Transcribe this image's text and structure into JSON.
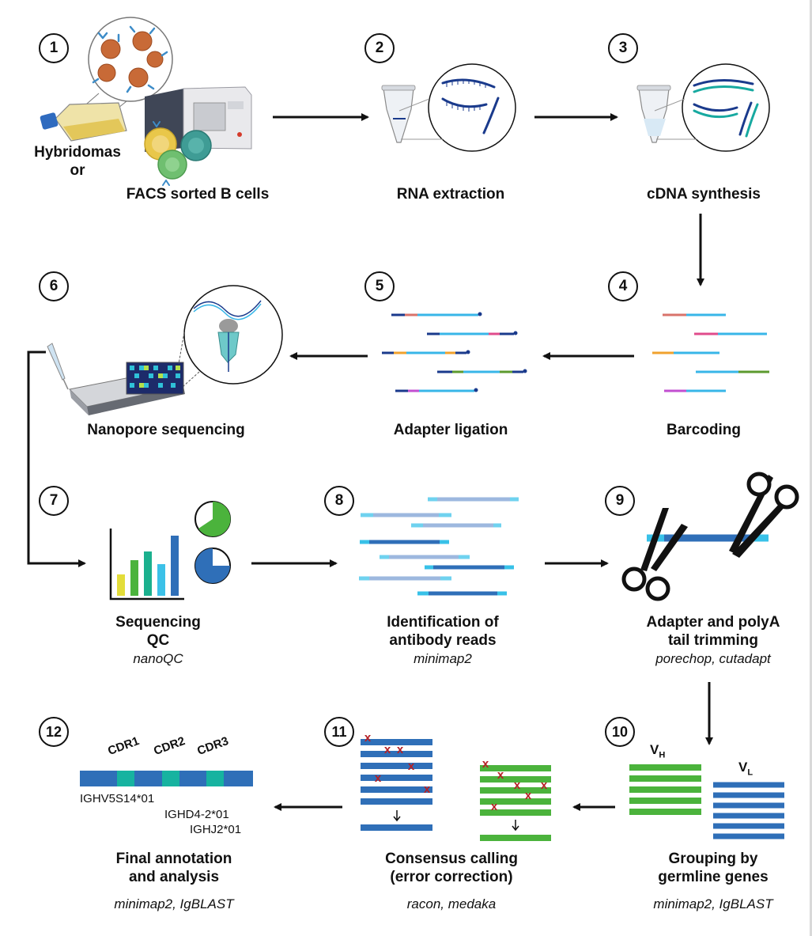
{
  "steps": [
    {
      "num": "1",
      "label": "FACS sorted B cells",
      "pre_label": [
        "Hybridomas",
        "or"
      ]
    },
    {
      "num": "2",
      "label": "RNA extraction"
    },
    {
      "num": "3",
      "label": "cDNA synthesis"
    },
    {
      "num": "4",
      "label": "Barcoding"
    },
    {
      "num": "5",
      "label": "Adapter ligation"
    },
    {
      "num": "6",
      "label": "Nanopore sequencing"
    },
    {
      "num": "7",
      "label_lines": [
        "Sequencing",
        "QC"
      ],
      "tool": "nanoQC"
    },
    {
      "num": "8",
      "label_lines": [
        "Identification of",
        "antibody reads"
      ],
      "tool": "minimap2"
    },
    {
      "num": "9",
      "label_lines": [
        "Adapter and polyA",
        "tail trimming"
      ],
      "tool": "porechop, cutadapt"
    },
    {
      "num": "10",
      "label_lines": [
        "Grouping by",
        "germline genes"
      ],
      "tool": "minimap2, IgBLAST"
    },
    {
      "num": "11",
      "label_lines": [
        "Consensus calling",
        "(error correction)"
      ],
      "tool": "racon, medaka"
    },
    {
      "num": "12",
      "label_lines": [
        "Final annotation",
        "and analysis"
      ],
      "tool": "minimap2, IgBLAST"
    }
  ],
  "cdr_labels": [
    "CDR1",
    "CDR2",
    "CDR3"
  ],
  "gene_labels": [
    "IGHV5S14*01",
    "IGHD4-2*01",
    "IGHJ2*01"
  ],
  "vh_label": "V",
  "vh_sub": "H",
  "vl_label": "V",
  "vl_sub": "L",
  "error_mark": "x",
  "colors": {
    "dark_blue": "#1a3a8c",
    "mid_blue": "#2f6fb8",
    "light_blue": "#9db8df",
    "cyan": "#38c1e8",
    "teal": "#17b3a0",
    "green": "#4bb33c",
    "yellow": "#e5dc3a",
    "red_x": "#b52025",
    "flask_yellow": "#e8cf6a"
  }
}
